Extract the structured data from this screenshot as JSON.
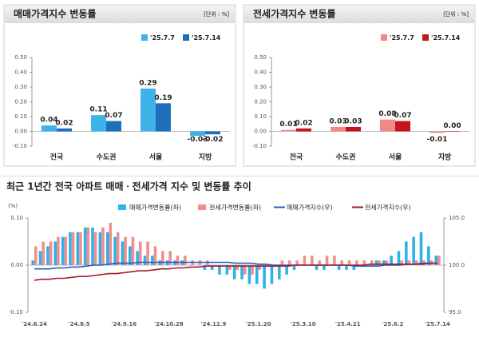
{
  "chart_data": [
    {
      "type": "bar",
      "title": "매매가격지수 변동률",
      "unit": "[단위 : %]",
      "categories": [
        "전국",
        "수도권",
        "서울",
        "지방"
      ],
      "series": [
        {
          "name": "'25.7.7",
          "color": "#3db3ea",
          "values": [
            0.04,
            0.11,
            0.29,
            -0.03
          ],
          "value_labels": [
            "0.04",
            "0.11",
            "0.29",
            "-0.03"
          ]
        },
        {
          "name": "'25.7.14",
          "color": "#1e6fba",
          "values": [
            0.02,
            0.07,
            0.19,
            -0.02
          ],
          "value_labels": [
            "0.02",
            "0.07",
            "0.19",
            "-0.02"
          ]
        }
      ],
      "ylim": [
        -0.1,
        0.5
      ],
      "yticks": [
        {
          "value": 0.5,
          "label": "0.50"
        },
        {
          "value": 0.4,
          "label": "0.40"
        },
        {
          "value": 0.3,
          "label": "0.30"
        },
        {
          "value": 0.2,
          "label": "0.20"
        },
        {
          "value": 0.1,
          "label": "0.10"
        },
        {
          "value": 0,
          "label": "0.00"
        },
        {
          "value": -0.1,
          "label": "-0.10"
        }
      ],
      "legend": "top-right"
    },
    {
      "type": "bar",
      "title": "전세가격지수 변동률",
      "unit": "[단위 : %]",
      "categories": [
        "전국",
        "수도권",
        "서울",
        "지방"
      ],
      "series": [
        {
          "name": "'25.7.7",
          "color": "#f08a8a",
          "values": [
            0.01,
            0.03,
            0.08,
            -0.01
          ],
          "value_labels": [
            "0.01",
            "0.03",
            "0.08",
            "-0.01"
          ]
        },
        {
          "name": "'25.7.14",
          "color": "#c4141e",
          "values": [
            0.02,
            0.03,
            0.07,
            0.0
          ],
          "value_labels": [
            "0.02",
            "0.03",
            "0.07",
            "0.00"
          ]
        }
      ],
      "ylim": [
        -0.1,
        0.5
      ],
      "yticks": [
        {
          "value": 0.5,
          "label": "0.50"
        },
        {
          "value": 0.4,
          "label": "0.40"
        },
        {
          "value": 0.3,
          "label": "0.30"
        },
        {
          "value": 0.2,
          "label": "0.20"
        },
        {
          "value": 0.1,
          "label": "0.10"
        },
        {
          "value": 0,
          "label": "0.00"
        },
        {
          "value": -0.1,
          "label": "-0.10"
        }
      ],
      "legend": "top-right"
    },
    {
      "type": "combo",
      "title": "최근 1년간 전국 아파트 매매ㆍ전세가격 지수 및 변동률 추이",
      "y_label": "(%)",
      "categories": [
        "'24.6.24",
        null,
        null,
        null,
        null,
        null,
        "'24.8.5",
        null,
        null,
        null,
        null,
        null,
        "'24.9.16",
        null,
        null,
        null,
        null,
        null,
        "'24.10.28",
        null,
        null,
        null,
        null,
        null,
        "'24.12.9",
        null,
        null,
        null,
        null,
        null,
        "'25.1.20",
        null,
        null,
        null,
        null,
        null,
        "'25.3.10",
        null,
        null,
        null,
        null,
        null,
        "'25.4.21",
        null,
        null,
        null,
        null,
        null,
        "'25.6.2",
        null,
        null,
        null,
        null,
        null,
        "'25.7.14"
      ],
      "series": [
        {
          "name": "매매가격변동률(좌)",
          "type": "bar",
          "color": "#2fb1ea",
          "values": [
            0.01,
            0.03,
            0.04,
            0.05,
            0.06,
            0.07,
            0.07,
            0.08,
            0.08,
            0.07,
            0.07,
            0.06,
            0.05,
            0.04,
            0.03,
            0.02,
            0.02,
            0.01,
            0.01,
            0.01,
            0.01,
            0.0,
            0.0,
            -0.01,
            -0.01,
            -0.02,
            -0.02,
            -0.03,
            -0.03,
            -0.04,
            -0.04,
            -0.05,
            -0.04,
            -0.03,
            -0.02,
            -0.01,
            0.0,
            0.0,
            -0.01,
            -0.01,
            0.0,
            -0.01,
            -0.01,
            -0.01,
            0.0,
            0.0,
            0.01,
            0.01,
            0.02,
            0.03,
            0.05,
            0.06,
            0.07,
            0.04,
            0.02
          ]
        },
        {
          "name": "전세가격변동률(좌)",
          "type": "bar",
          "color": "#f28d8d",
          "values": [
            0.04,
            0.05,
            0.05,
            0.06,
            0.06,
            0.07,
            0.07,
            0.08,
            0.07,
            0.08,
            0.09,
            0.07,
            0.06,
            0.06,
            0.05,
            0.05,
            0.04,
            0.03,
            0.03,
            0.02,
            0.02,
            0.01,
            0.01,
            0.01,
            0.0,
            0.0,
            -0.01,
            -0.01,
            -0.02,
            -0.02,
            -0.01,
            0.0,
            0.0,
            0.01,
            0.01,
            0.01,
            0.02,
            0.02,
            0.01,
            0.02,
            0.02,
            0.01,
            0.01,
            0.01,
            0.01,
            0.01,
            0.01,
            0.01,
            0.0,
            0.01,
            0.01,
            0.01,
            0.01,
            0.01,
            0.02
          ]
        },
        {
          "name": "매매가격지수(우)",
          "type": "line",
          "axis": "y2",
          "color": "#1f5fbf",
          "values": [
            99.6,
            99.6,
            99.6,
            99.7,
            99.7,
            99.8,
            99.8,
            99.9,
            100.0,
            100.0,
            100.1,
            100.2,
            100.2,
            100.2,
            100.3,
            100.3,
            100.3,
            100.3,
            100.3,
            100.3,
            100.3,
            100.3,
            100.3,
            100.3,
            100.3,
            100.3,
            100.3,
            100.2,
            100.2,
            100.2,
            100.1,
            100.1,
            100.0,
            100.0,
            100.0,
            100.0,
            100.0,
            100.0,
            100.0,
            100.0,
            100.0,
            100.0,
            100.0,
            99.9,
            99.9,
            99.9,
            99.9,
            100.0,
            100.0,
            100.0,
            100.1,
            100.1,
            100.2,
            100.2,
            100.2
          ]
        },
        {
          "name": "전세가격지수(우)",
          "type": "line",
          "axis": "y2",
          "color": "#a31e2a",
          "values": [
            98.4,
            98.5,
            98.5,
            98.6,
            98.6,
            98.7,
            98.8,
            98.8,
            98.9,
            99.0,
            99.1,
            99.1,
            99.2,
            99.3,
            99.4,
            99.4,
            99.5,
            99.6,
            99.6,
            99.7,
            99.7,
            99.8,
            99.8,
            99.9,
            99.9,
            99.9,
            99.9,
            99.9,
            99.9,
            99.9,
            99.9,
            99.9,
            99.9,
            99.9,
            99.9,
            100.0,
            100.0,
            100.0,
            100.0,
            100.0,
            100.0,
            100.0,
            100.0,
            100.0,
            100.0,
            100.1,
            100.1,
            100.1,
            100.1,
            100.1,
            100.1,
            100.1,
            100.1,
            100.2,
            100.2
          ]
        }
      ],
      "ylim": [
        -0.1,
        0.1
      ],
      "yticks": [
        {
          "value": 0.1,
          "label": "0.10"
        },
        {
          "value": 0,
          "label": "0.00"
        },
        {
          "value": -0.1,
          "label": "-0.10"
        }
      ],
      "y2lim": [
        95,
        105
      ],
      "y2ticks": [
        {
          "value": 105,
          "label": "105.0"
        },
        {
          "value": 100,
          "label": "100.0"
        },
        {
          "value": 95,
          "label": "95.0"
        }
      ],
      "legend": "top"
    }
  ]
}
